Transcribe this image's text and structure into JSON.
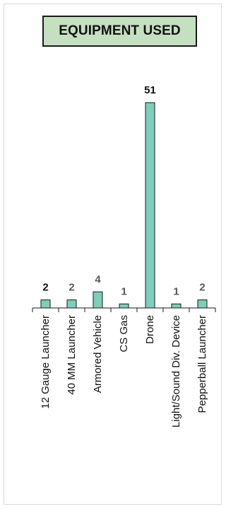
{
  "chart_data": {
    "type": "bar",
    "title": "EQUIPMENT USED",
    "categories": [
      "12 Gauge Launcher",
      "40 MM Launcher",
      "Armored Vehicle",
      "CS Gas",
      "Drone",
      "Light/Sound Div. Device",
      "Pepperball Launcher"
    ],
    "values": [
      2,
      2,
      4,
      1,
      51,
      1,
      2
    ],
    "ylim": [
      0,
      51
    ],
    "xlabel": "",
    "ylabel": "",
    "grid": false,
    "bar_color": "#7fcdbb",
    "bar_edge_color": "#1a1a1a",
    "data_label_colors": [
      "#111111",
      "#595959",
      "#595959",
      "#595959",
      "#111111",
      "#595959",
      "#595959"
    ]
  }
}
